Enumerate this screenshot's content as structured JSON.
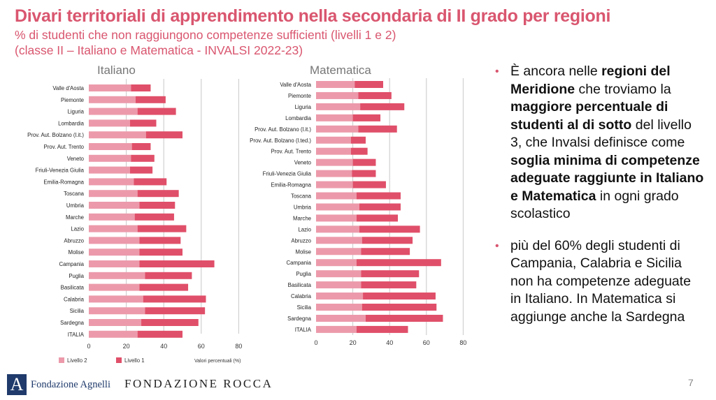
{
  "header": {
    "title": "Divari territoriali di apprendimento nella secondaria di II grado per regioni",
    "subtitle_line1": "% di studenti che non raggiungono competenze sufficienti (livelli 1 e 2)",
    "subtitle_line2": "(classe II – Italiano e Matematica - INVALSI 2022-23)"
  },
  "colors": {
    "title": "#d9566f",
    "livello2": "#ec9aab",
    "livello1": "#e04f69"
  },
  "chart_data": [
    {
      "type": "bar",
      "orientation": "horizontal",
      "stacked": true,
      "title": "Italiano",
      "categories": [
        "Valle d'Aosta",
        "Piemonte",
        "Liguria",
        "Lombardia",
        "Prov. Aut. Bolzano (l.it.)",
        "Prov. Aut. Trento",
        "Veneto",
        "Friuli-Venezia Giulia",
        "Emilia-Romagna",
        "Toscana",
        "Umbria",
        "Marche",
        "Lazio",
        "Abruzzo",
        "Molise",
        "Campania",
        "Puglia",
        "Basilicata",
        "Calabria",
        "Sicilia",
        "Sardegna",
        "ITALIA"
      ],
      "series": [
        {
          "name": "Livello 2",
          "values": [
            22.5,
            25,
            26,
            22,
            30.5,
            23,
            22.5,
            22,
            24,
            26,
            27,
            24.5,
            26,
            27,
            27,
            27,
            30,
            27,
            29,
            30,
            28,
            26
          ]
        },
        {
          "name": "Livello 1",
          "values": [
            10.5,
            16,
            20.5,
            14,
            19.5,
            10,
            12.5,
            12,
            17.5,
            22,
            19,
            21,
            26,
            22,
            23,
            40,
            25,
            26,
            33.5,
            32,
            30.5,
            24
          ]
        }
      ],
      "xlim": [
        0,
        80
      ],
      "xticks": [
        "0",
        "20",
        "40",
        "60",
        "80"
      ],
      "xlabel": "Valori percentuali (%)",
      "grid": true,
      "legend": "bottom"
    },
    {
      "type": "bar",
      "orientation": "horizontal",
      "stacked": true,
      "title": "Matematica",
      "categories": [
        "Valle d'Aosta",
        "Piemonte",
        "Liguria",
        "Lombardia",
        "Prov. Aut. Bolzano (l.it.)",
        "Prov. Aut. Bolzano (l.ted.)",
        "Prov. Aut. Trento",
        "Veneto",
        "Friuli-Venezia Giulia",
        "Emilia-Romagna",
        "Toscana",
        "Umbria",
        "Marche",
        "Lazio",
        "Abruzzo",
        "Molise",
        "Campania",
        "Puglia",
        "Basilicata",
        "Calabria",
        "Sicilia",
        "Sardegna",
        "ITALIA"
      ],
      "series": [
        {
          "name": "Livello 2",
          "values": [
            21,
            23,
            24,
            20,
            23,
            19,
            19,
            20,
            19.5,
            20,
            22,
            23.5,
            22,
            23.5,
            25,
            24.5,
            22,
            24.5,
            24.5,
            25.5,
            25,
            27,
            22
          ]
        },
        {
          "name": "Livello 1",
          "values": [
            15.5,
            18,
            24,
            15,
            21,
            8,
            9,
            12.5,
            13,
            18,
            24,
            22.5,
            22.5,
            33,
            27.5,
            26.5,
            46,
            31.5,
            30,
            39.5,
            40.5,
            42,
            28
          ]
        }
      ],
      "xlim": [
        0,
        80
      ],
      "xticks": [
        "0",
        "20",
        "40",
        "60",
        "80"
      ],
      "grid": true
    }
  ],
  "bullets": [
    {
      "segments": [
        {
          "text": "È ancora nelle ",
          "bold": false
        },
        {
          "text": "regioni del Meridione",
          "bold": true
        },
        {
          "text": " che troviamo la ",
          "bold": false
        },
        {
          "text": "maggiore percentuale di studenti al di sotto",
          "bold": true
        },
        {
          "text": " del livello 3, che Invalsi definisce come ",
          "bold": false
        },
        {
          "text": "soglia minima di competenze adeguate raggiunte in Italiano e Matematica",
          "bold": true
        },
        {
          "text": " in ogni grado scolastico",
          "bold": false
        }
      ]
    },
    {
      "segments": [
        {
          "text": "più del 60% degli studenti di Campania, Calabria e Sicilia non ha competenze adeguate in Italiano. In Matematica si aggiunge anche la Sardegna",
          "bold": false
        }
      ]
    }
  ],
  "footer": {
    "logo1_mark": "A",
    "logo1_name": "Fondazione Agnelli",
    "logo2": "FONDAZIONE ROCCA",
    "page_number": "7"
  }
}
